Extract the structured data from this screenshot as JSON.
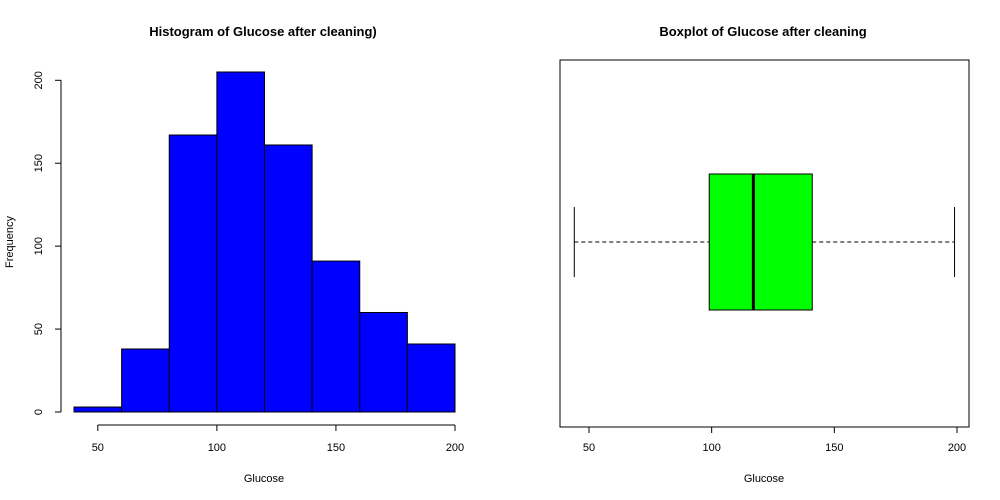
{
  "chart_data": [
    {
      "type": "bar",
      "subtype": "histogram",
      "title": "Histogram of Glucose after cleaning)",
      "xlabel": "Glucose",
      "ylabel": "Frequency",
      "bins": [
        {
          "from": 40,
          "to": 60,
          "count": 3
        },
        {
          "from": 60,
          "to": 80,
          "count": 38
        },
        {
          "from": 80,
          "to": 100,
          "count": 167
        },
        {
          "from": 100,
          "to": 120,
          "count": 205
        },
        {
          "from": 120,
          "to": 140,
          "count": 161
        },
        {
          "from": 140,
          "to": 160,
          "count": 91
        },
        {
          "from": 160,
          "to": 180,
          "count": 60
        },
        {
          "from": 180,
          "to": 200,
          "count": 41
        }
      ],
      "xticks": [
        50,
        100,
        150,
        200
      ],
      "yticks": [
        0,
        50,
        100,
        150,
        200
      ],
      "xlim": [
        40,
        200
      ],
      "ylim": [
        0,
        205
      ],
      "bar_color": "#0000ff"
    },
    {
      "type": "boxplot",
      "orientation": "horizontal",
      "title": "Boxplot of Glucose after cleaning",
      "xlabel": "Glucose",
      "stats": {
        "min": 44,
        "q1": 99,
        "median": 117,
        "q3": 141,
        "max": 199
      },
      "xticks": [
        50,
        100,
        150,
        200
      ],
      "xlim": [
        40,
        200
      ],
      "box_color": "#00ff00"
    }
  ]
}
